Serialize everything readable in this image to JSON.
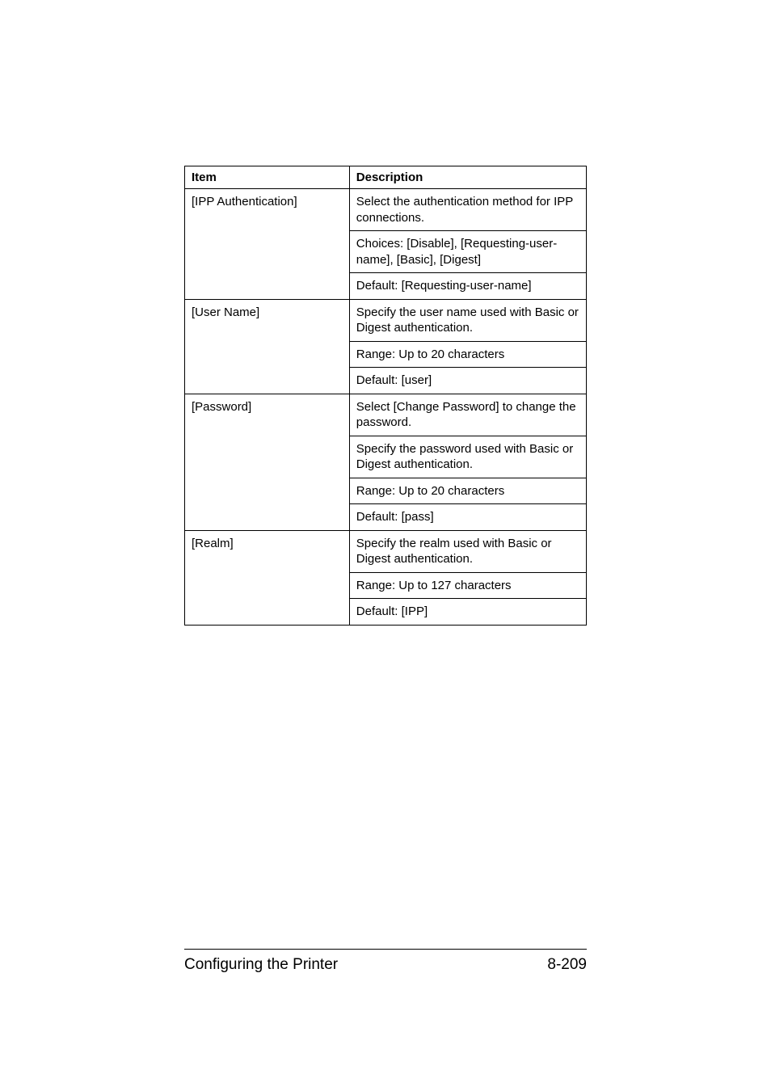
{
  "table": {
    "headers": {
      "item": "Item",
      "description": "Description"
    },
    "rows": [
      {
        "item": "[IPP Authentication]",
        "descriptions": [
          "Select the authentication method for IPP connections.",
          "Choices: [Disable], [Requesting-user-name], [Basic], [Digest]",
          "Default: [Requesting-user-name]"
        ]
      },
      {
        "item": "[User Name]",
        "descriptions": [
          "Specify the user name used with Basic or Digest authentication.",
          "Range: Up to 20 characters",
          "Default: [user]"
        ]
      },
      {
        "item": "[Password]",
        "descriptions": [
          "Select [Change Password] to change the password.",
          "Specify the password used with Basic or Digest authentication.",
          "Range: Up to 20 characters",
          "Default: [pass]"
        ]
      },
      {
        "item": "[Realm]",
        "descriptions": [
          "Specify the realm used with Basic or Digest authentication.",
          "Range: Up to 127 characters",
          "Default: [IPP]"
        ]
      }
    ]
  },
  "footer": {
    "left": "Configuring the Printer",
    "right": "8-209"
  }
}
